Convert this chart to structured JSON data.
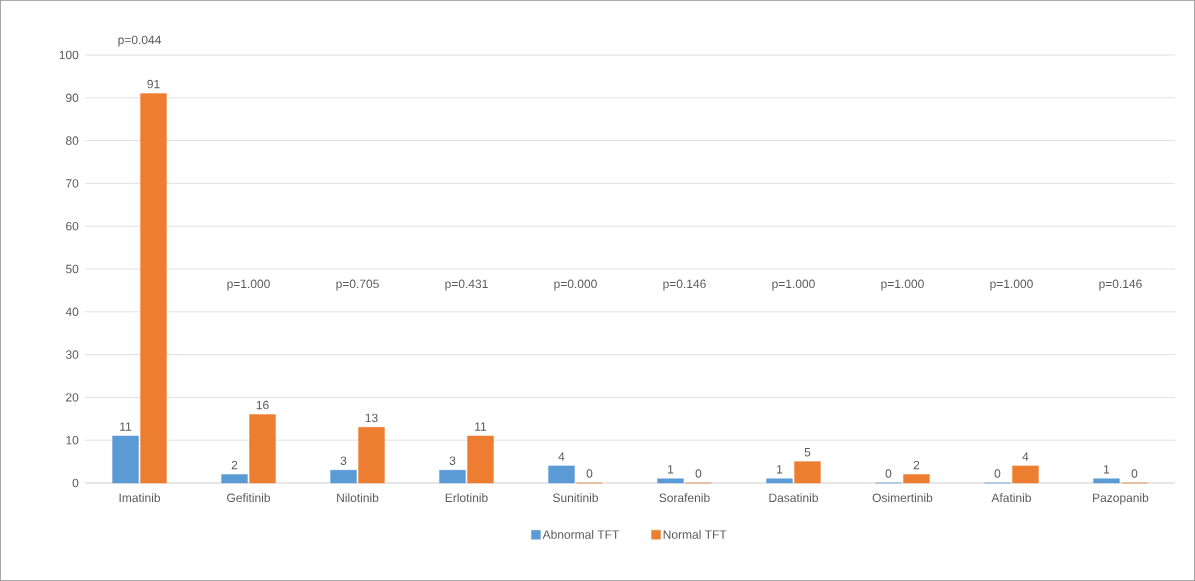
{
  "chart_data": {
    "type": "bar",
    "categories": [
      "Imatinib",
      "Gefitinib",
      "Nilotinib",
      "Erlotinib",
      "Sunitinib",
      "Sorafenib",
      "Dasatinib",
      "Osimertinib",
      "Afatinib",
      "Pazopanib"
    ],
    "series": [
      {
        "name": "Abnormal TFT",
        "color": "#5b9bd5",
        "values": [
          11,
          2,
          3,
          3,
          4,
          1,
          1,
          0,
          0,
          1
        ]
      },
      {
        "name": "Normal TFT",
        "color": "#ed7d31",
        "values": [
          91,
          16,
          13,
          11,
          0,
          0,
          5,
          2,
          4,
          0
        ]
      }
    ],
    "ylim": [
      0,
      100
    ],
    "yticks": [
      0,
      10,
      20,
      30,
      40,
      50,
      60,
      70,
      80,
      90,
      100
    ],
    "grid": "y",
    "legend": "bottom",
    "data_labels": true,
    "annotations": [
      "p=0.044",
      "p=1.000",
      "p=0.705",
      "p=0.431",
      "p=0.000",
      "p=0.146",
      "p=1.000",
      "p=1.000",
      "p=1.000",
      "p=0.146"
    ]
  }
}
